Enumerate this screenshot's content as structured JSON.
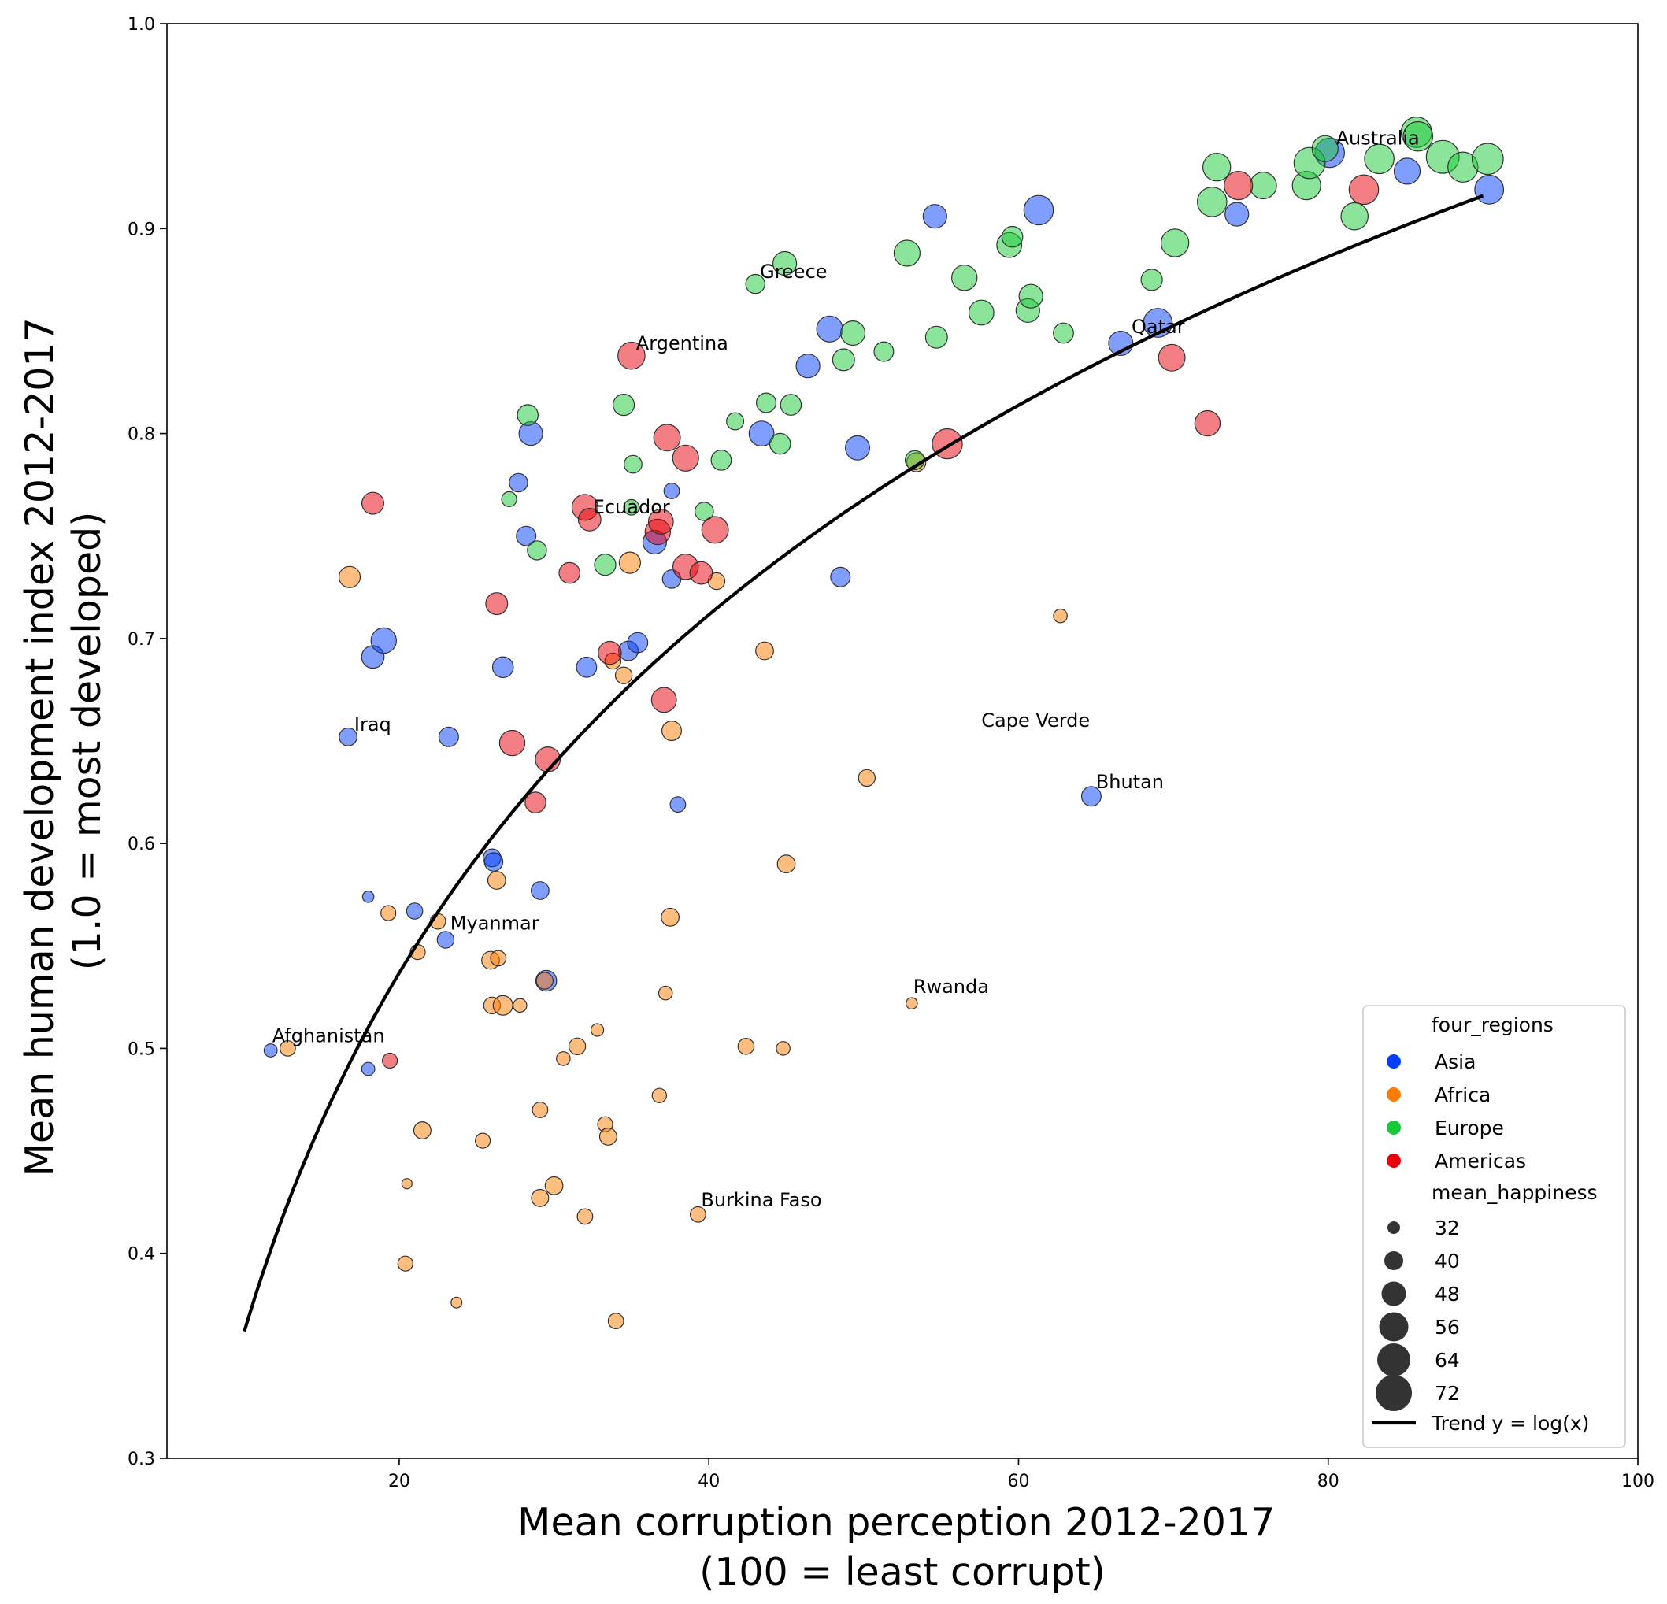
{
  "chart_data": {
    "type": "scatter",
    "xlabel": [
      "Mean corruption perception 2012-2017",
      "(100 = least corrupt)"
    ],
    "ylabel": [
      "Mean human development index 2012-2017",
      "(1.0 = most developed)"
    ],
    "xlim": [
      5,
      100
    ],
    "ylim": [
      0.3,
      1.0
    ],
    "xticks": [
      20,
      40,
      60,
      80,
      100
    ],
    "yticks": [
      0.3,
      0.4,
      0.5,
      0.6,
      0.7,
      0.8,
      0.9,
      1.0
    ],
    "grid": false,
    "legend_position": "lower-right",
    "legend": {
      "hue_title": "four_regions",
      "hue_entries": [
        {
          "name": "Asia",
          "color": "#023eff"
        },
        {
          "name": "Africa",
          "color": "#ff7c00"
        },
        {
          "name": "Europe",
          "color": "#1ac938"
        },
        {
          "name": "Americas",
          "color": "#e8000b"
        }
      ],
      "size_title": "mean_happiness",
      "size_entries": [
        "32",
        "40",
        "48",
        "56",
        "64",
        "72"
      ],
      "trend_label": "Trend y = log(x)"
    },
    "colors": {
      "Asia": "#023eff",
      "Africa": "#ff7c00",
      "Europe": "#1ac938",
      "Americas": "#e8000b"
    },
    "trend": {
      "x_start": 10,
      "x_end": 90,
      "y_start": 0.362,
      "y_end": 0.916
    },
    "annotations": [
      {
        "text": "Australia",
        "x": 80.5,
        "y": 0.941
      },
      {
        "text": "Greece",
        "x": 43.3,
        "y": 0.876
      },
      {
        "text": "Qatar",
        "x": 67.3,
        "y": 0.849
      },
      {
        "text": "Argentina",
        "x": 35.3,
        "y": 0.841
      },
      {
        "text": "Ecuador",
        "x": 32.5,
        "y": 0.761
      },
      {
        "text": "Iraq",
        "x": 17.1,
        "y": 0.655
      },
      {
        "text": "Cape Verde",
        "x": 57.6,
        "y": 0.657
      },
      {
        "text": "Bhutan",
        "x": 65.0,
        "y": 0.627
      },
      {
        "text": "Myanmar",
        "x": 23.3,
        "y": 0.558
      },
      {
        "text": "Rwanda",
        "x": 53.2,
        "y": 0.527
      },
      {
        "text": "Afghanistan",
        "x": 11.8,
        "y": 0.503
      },
      {
        "text": "Burkina Faso",
        "x": 39.5,
        "y": 0.423
      }
    ],
    "series": [
      {
        "name": "Asia",
        "points": [
          [
            11.7,
            0.499,
            34
          ],
          [
            16.7,
            0.652,
            42
          ],
          [
            18.0,
            0.574,
            31
          ],
          [
            18.3,
            0.691,
            50
          ],
          [
            19.0,
            0.699,
            55
          ],
          [
            21.0,
            0.567,
            39
          ],
          [
            23.0,
            0.553,
            40
          ],
          [
            23.2,
            0.652,
            45
          ],
          [
            26.0,
            0.593,
            42
          ],
          [
            26.1,
            0.591,
            43
          ],
          [
            26.7,
            0.686,
            47
          ],
          [
            27.7,
            0.776,
            43
          ],
          [
            28.2,
            0.75,
            45
          ],
          [
            28.5,
            0.8,
            52
          ],
          [
            29.1,
            0.577,
            42
          ],
          [
            29.5,
            0.533,
            47
          ],
          [
            32.1,
            0.686,
            46
          ],
          [
            34.8,
            0.694,
            45
          ],
          [
            35.4,
            0.698,
            46
          ],
          [
            36.5,
            0.747,
            52
          ],
          [
            37.6,
            0.729,
            43
          ],
          [
            37.6,
            0.772,
            38
          ],
          [
            38.0,
            0.619,
            38
          ],
          [
            43.4,
            0.8,
            54
          ],
          [
            46.4,
            0.833,
            52
          ],
          [
            47.8,
            0.851,
            56
          ],
          [
            48.5,
            0.73,
            45
          ],
          [
            49.6,
            0.793,
            53
          ],
          [
            54.6,
            0.906,
            52
          ],
          [
            61.3,
            0.909,
            62
          ],
          [
            64.7,
            0.623,
            45
          ],
          [
            66.6,
            0.844,
            53
          ],
          [
            69.0,
            0.854,
            61
          ],
          [
            74.1,
            0.907,
            52
          ],
          [
            80.1,
            0.937,
            62
          ],
          [
            85.1,
            0.928,
            56
          ],
          [
            90.4,
            0.919,
            61
          ],
          [
            18.0,
            0.49,
            34
          ]
        ]
      },
      {
        "name": "Africa",
        "points": [
          [
            12.8,
            0.5,
            38
          ],
          [
            16.8,
            0.73,
            48
          ],
          [
            19.3,
            0.566,
            37
          ],
          [
            20.4,
            0.395,
            37
          ],
          [
            20.5,
            0.434,
            29
          ],
          [
            21.2,
            0.547,
            37
          ],
          [
            21.5,
            0.46,
            41
          ],
          [
            22.5,
            0.562,
            38
          ],
          [
            23.7,
            0.376,
            30
          ],
          [
            25.4,
            0.455,
            37
          ],
          [
            25.9,
            0.543,
            42
          ],
          [
            26.0,
            0.521,
            40
          ],
          [
            26.3,
            0.582,
            42
          ],
          [
            26.4,
            0.544,
            38
          ],
          [
            26.7,
            0.521,
            45
          ],
          [
            27.8,
            0.521,
            35
          ],
          [
            29.1,
            0.47,
            38
          ],
          [
            29.1,
            0.427,
            41
          ],
          [
            29.4,
            0.533,
            40
          ],
          [
            30.0,
            0.433,
            42
          ],
          [
            30.6,
            0.495,
            35
          ],
          [
            31.5,
            0.501,
            40
          ],
          [
            32.0,
            0.418,
            38
          ],
          [
            32.8,
            0.509,
            33
          ],
          [
            33.3,
            0.463,
            37
          ],
          [
            33.5,
            0.457,
            41
          ],
          [
            33.8,
            0.689,
            39
          ],
          [
            34.0,
            0.367,
            38
          ],
          [
            34.5,
            0.682,
            40
          ],
          [
            34.9,
            0.737,
            48
          ],
          [
            36.8,
            0.477,
            36
          ],
          [
            37.2,
            0.527,
            35
          ],
          [
            37.5,
            0.564,
            42
          ],
          [
            37.6,
            0.655,
            45
          ],
          [
            39.3,
            0.419,
            38
          ],
          [
            40.5,
            0.728,
            40
          ],
          [
            42.4,
            0.501,
            39
          ],
          [
            43.6,
            0.694,
            42
          ],
          [
            44.8,
            0.5,
            35
          ],
          [
            45.0,
            0.59,
            42
          ],
          [
            50.2,
            0.632,
            40
          ],
          [
            53.1,
            0.522,
            31
          ],
          [
            53.4,
            0.786,
            44
          ],
          [
            62.7,
            0.711,
            35
          ]
        ]
      },
      {
        "name": "Europe",
        "points": [
          [
            27.1,
            0.768,
            37
          ],
          [
            28.3,
            0.809,
            47
          ],
          [
            28.9,
            0.743,
            44
          ],
          [
            33.3,
            0.736,
            48
          ],
          [
            34.5,
            0.814,
            48
          ],
          [
            35.0,
            0.764,
            38
          ],
          [
            35.1,
            0.785,
            42
          ],
          [
            39.7,
            0.762,
            43
          ],
          [
            40.8,
            0.787,
            46
          ],
          [
            41.7,
            0.806,
            41
          ],
          [
            43.0,
            0.873,
            44
          ],
          [
            43.7,
            0.815,
            45
          ],
          [
            44.6,
            0.795,
            47
          ],
          [
            44.9,
            0.883,
            52
          ],
          [
            45.3,
            0.814,
            47
          ],
          [
            48.7,
            0.836,
            49
          ],
          [
            49.3,
            0.849,
            53
          ],
          [
            51.3,
            0.84,
            45
          ],
          [
            52.8,
            0.888,
            56
          ],
          [
            53.3,
            0.787,
            44
          ],
          [
            54.7,
            0.847,
            49
          ],
          [
            56.5,
            0.876,
            55
          ],
          [
            57.6,
            0.859,
            54
          ],
          [
            59.4,
            0.892,
            54
          ],
          [
            59.6,
            0.896,
            47
          ],
          [
            60.6,
            0.86,
            52
          ],
          [
            60.8,
            0.867,
            52
          ],
          [
            62.9,
            0.849,
            46
          ],
          [
            68.6,
            0.875,
            48
          ],
          [
            70.1,
            0.893,
            59
          ],
          [
            72.5,
            0.913,
            62
          ],
          [
            72.8,
            0.93,
            59
          ],
          [
            75.8,
            0.921,
            57
          ],
          [
            78.6,
            0.921,
            60
          ],
          [
            78.8,
            0.932,
            65
          ],
          [
            79.8,
            0.939,
            56
          ],
          [
            81.7,
            0.906,
            58
          ],
          [
            83.3,
            0.934,
            62
          ],
          [
            85.7,
            0.947,
            64
          ],
          [
            85.8,
            0.945,
            62
          ],
          [
            87.4,
            0.935,
            68
          ],
          [
            88.7,
            0.93,
            63
          ],
          [
            90.3,
            0.934,
            65
          ]
        ]
      },
      {
        "name": "Americas",
        "points": [
          [
            18.3,
            0.766,
            49
          ],
          [
            19.4,
            0.494,
            37
          ],
          [
            26.3,
            0.717,
            49
          ],
          [
            27.3,
            0.649,
            55
          ],
          [
            28.8,
            0.62,
            47
          ],
          [
            29.6,
            0.641,
            54
          ],
          [
            31.0,
            0.732,
            47
          ],
          [
            32.0,
            0.764,
            56
          ],
          [
            32.3,
            0.758,
            50
          ],
          [
            33.6,
            0.693,
            51
          ],
          [
            35.0,
            0.838,
            58
          ],
          [
            36.7,
            0.752,
            55
          ],
          [
            36.9,
            0.757,
            54
          ],
          [
            37.1,
            0.67,
            54
          ],
          [
            37.3,
            0.798,
            57
          ],
          [
            38.5,
            0.788,
            56
          ],
          [
            38.5,
            0.735,
            55
          ],
          [
            39.5,
            0.732,
            50
          ],
          [
            40.4,
            0.753,
            57
          ],
          [
            55.4,
            0.795,
            63
          ],
          [
            69.9,
            0.837,
            57
          ],
          [
            72.2,
            0.805,
            55
          ],
          [
            74.2,
            0.921,
            60
          ],
          [
            82.3,
            0.919,
            62
          ]
        ]
      }
    ]
  }
}
